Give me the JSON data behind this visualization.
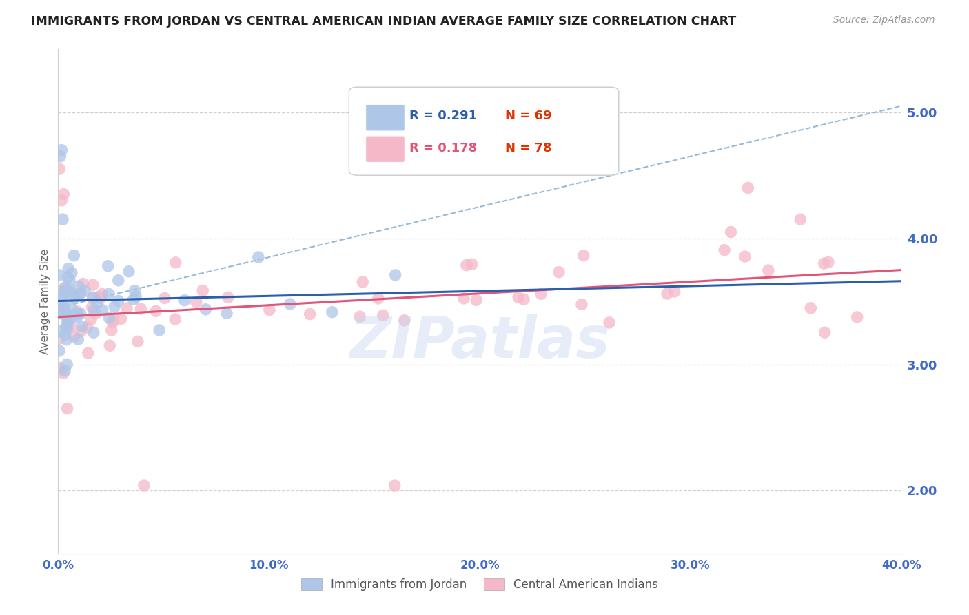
{
  "title": "IMMIGRANTS FROM JORDAN VS CENTRAL AMERICAN INDIAN AVERAGE FAMILY SIZE CORRELATION CHART",
  "source": "Source: ZipAtlas.com",
  "ylabel": "Average Family Size",
  "yticks": [
    2.0,
    3.0,
    4.0,
    5.0
  ],
  "ytick_color": "#4169c8",
  "xtick_color": "#4169c8",
  "background_color": "#ffffff",
  "jordan_color": "#aec6e8",
  "jordan_line_color": "#2b5fad",
  "jordan_dashed_color": "#7aaad0",
  "jordan_label": "Immigrants from Jordan",
  "jordan_R": "0.291",
  "jordan_N": "69",
  "central_color": "#f5b8c8",
  "central_line_color": "#e05578",
  "central_label": "Central American Indians",
  "central_R": "0.178",
  "central_N": "78",
  "watermark": "ZIPatlas",
  "xlim": [
    0.0,
    0.4
  ],
  "ylim": [
    1.5,
    5.5
  ],
  "xtick_vals": [
    0.0,
    0.1,
    0.2,
    0.3,
    0.4
  ],
  "xtick_labels": [
    "0.0%",
    "10.0%",
    "20.0%",
    "30.0%",
    "40.0%"
  ]
}
